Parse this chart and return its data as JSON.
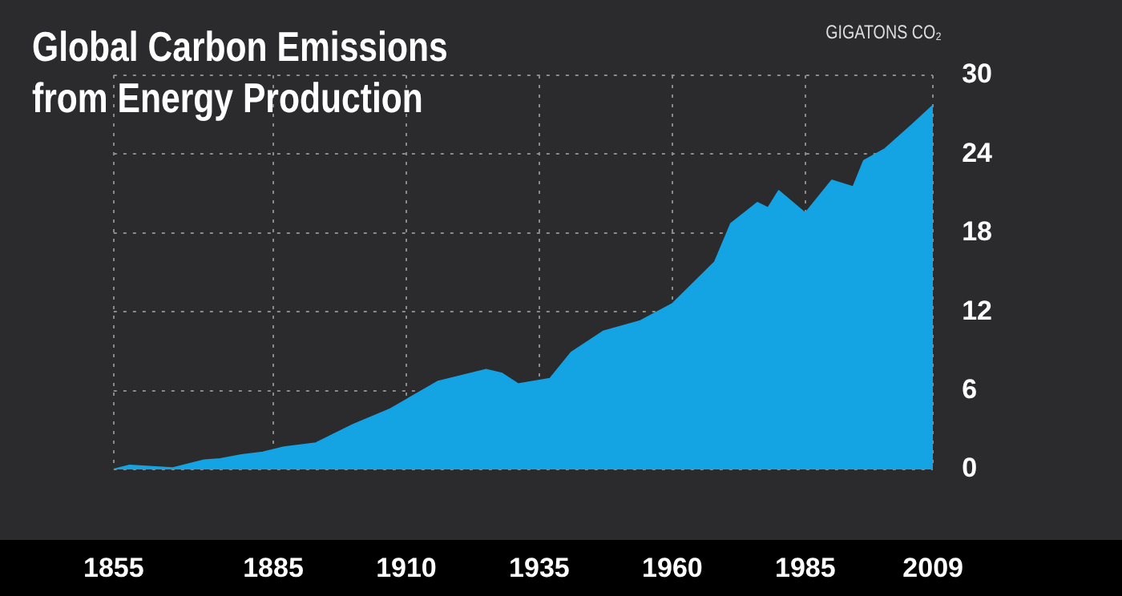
{
  "chart_data": {
    "type": "area",
    "title": "Global Carbon Emissions from Energy Production",
    "ylabel": "GIGATONS CO₂",
    "x": [
      1855,
      1858,
      1866,
      1872,
      1875,
      1879,
      1883,
      1887,
      1893,
      1900,
      1907,
      1916,
      1925,
      1928,
      1931,
      1937,
      1941,
      1947,
      1954,
      1960,
      1968,
      1971,
      1976,
      1978,
      1980,
      1985,
      1990,
      1994,
      1996,
      2000,
      2005,
      2009
    ],
    "values": [
      0,
      0.3,
      0.1,
      0.7,
      0.8,
      1.1,
      1.3,
      1.7,
      2,
      3.4,
      4.6,
      6.7,
      7.6,
      7.3,
      6.5,
      6.9,
      8.9,
      10.5,
      11.3,
      12.6,
      15.8,
      18.7,
      20.3,
      19.9,
      21.2,
      19.5,
      22.0,
      21.5,
      23.5,
      24.4,
      26.2,
      27.7
    ],
    "color": "#14a3e3",
    "xlim": [
      1855,
      2009
    ],
    "xticks": [
      1855,
      1885,
      1910,
      1935,
      1960,
      1985,
      2009
    ],
    "ylim": [
      0,
      30
    ],
    "yticks": [
      0,
      6,
      12,
      18,
      24,
      30
    ],
    "grid": true,
    "legend": false
  }
}
